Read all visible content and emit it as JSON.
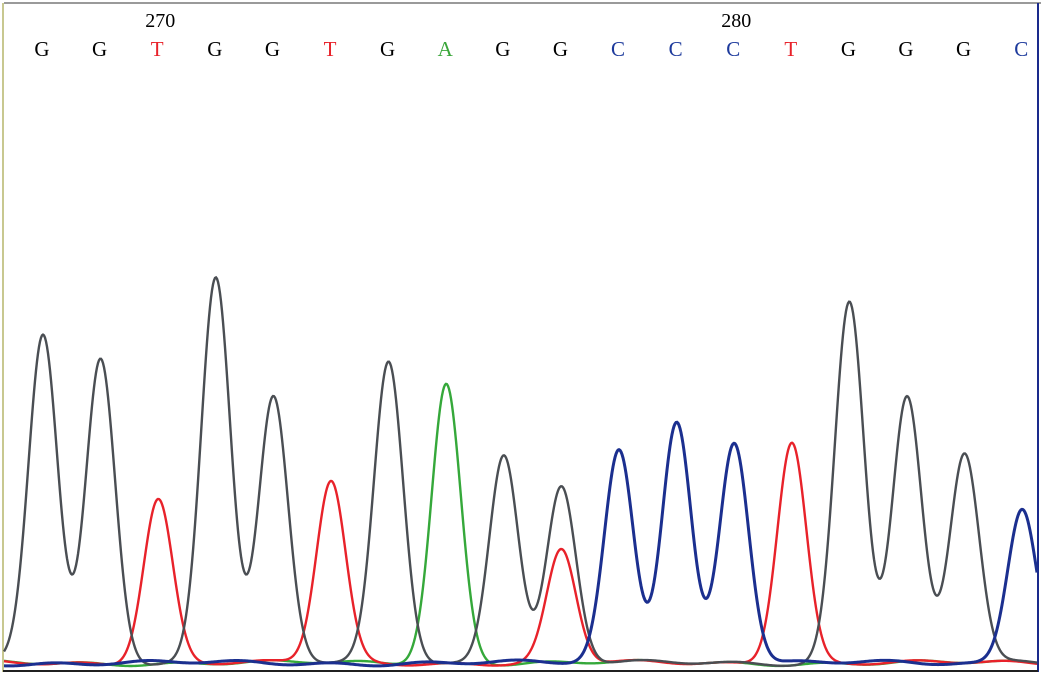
{
  "chart_data": {
    "type": "line",
    "title": "",
    "xlabel": "",
    "ylabel": "",
    "position_labels": [
      {
        "index": 2,
        "label": "270"
      },
      {
        "index": 12,
        "label": "280"
      }
    ],
    "sequence": [
      "G",
      "G",
      "T",
      "G",
      "G",
      "T",
      "G",
      "A",
      "G",
      "G",
      "C",
      "C",
      "C",
      "T",
      "G",
      "G",
      "G",
      "C"
    ],
    "base_colors": {
      "G": "#000000",
      "T": "#e8222a",
      "A": "#3aa63a",
      "C": "#1d3a9c"
    },
    "trace_colors": {
      "G": "#4a4e53",
      "T": "#e8222a",
      "A": "#35a83a",
      "C": "#1b2f8f"
    },
    "ylim": [
      0,
      400
    ],
    "peaks": [
      {
        "base": "G",
        "height": 330
      },
      {
        "base": "G",
        "height": 305
      },
      {
        "base": "T",
        "height": 165
      },
      {
        "base": "G",
        "height": 388
      },
      {
        "base": "G",
        "height": 265
      },
      {
        "base": "T",
        "height": 182
      },
      {
        "base": "G",
        "height": 302
      },
      {
        "base": "A",
        "height": 280
      },
      {
        "base": "G",
        "height": 211
      },
      {
        "base": "G",
        "height": 176
      },
      {
        "base": "C",
        "height": 213
      },
      {
        "base": "C",
        "height": 243
      },
      {
        "base": "C",
        "height": 222
      },
      {
        "base": "T",
        "height": 223
      },
      {
        "base": "G",
        "height": 363
      },
      {
        "base": "G",
        "height": 266
      },
      {
        "base": "G",
        "height": 210
      },
      {
        "base": "C",
        "height": 157
      }
    ],
    "secondary_peaks": [
      {
        "index": 9,
        "base": "T",
        "height": 113
      }
    ]
  }
}
